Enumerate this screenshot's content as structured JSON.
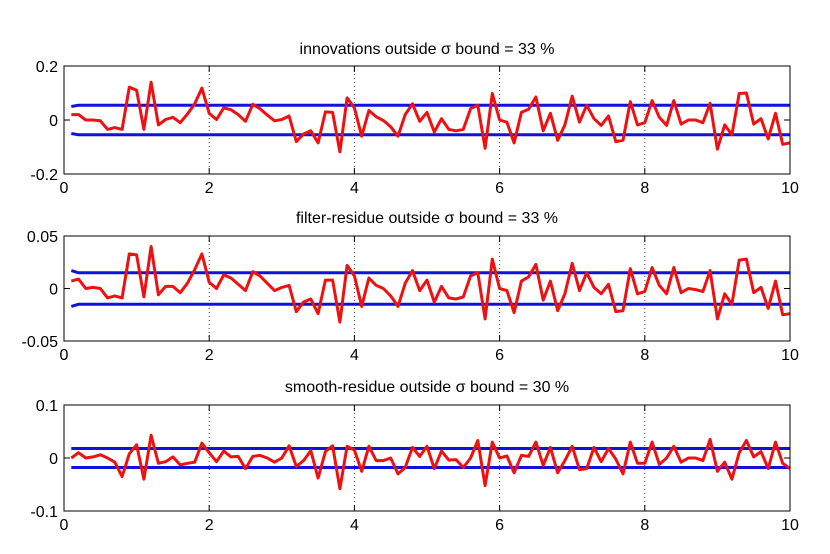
{
  "figure": {
    "background": "#ffffff",
    "series_colors": {
      "residual": "#ee1111",
      "bound": "#1111dd"
    }
  },
  "chart_data": [
    {
      "type": "line",
      "title": "innovations outside σ bound = 33 %",
      "xlim": [
        0,
        10
      ],
      "ylim": [
        -0.2,
        0.2
      ],
      "xticks": [
        "0",
        "2",
        "4",
        "6",
        "8",
        "10"
      ],
      "yticks": [
        "0.2",
        "0",
        "-0.2"
      ],
      "ytick_values": [
        0.2,
        0,
        -0.2
      ],
      "xgrid": "dotted vertical lines at each x tick",
      "x_start": 0.1,
      "x_step": 0.1,
      "series": [
        {
          "role": "residual",
          "values": [
            0.02,
            0.02,
            0.0,
            0.0,
            -0.003,
            -0.035,
            -0.028,
            -0.035,
            0.122,
            0.11,
            -0.035,
            0.14,
            -0.018,
            0.002,
            0.01,
            -0.01,
            0.022,
            0.06,
            0.118,
            0.025,
            0.002,
            0.045,
            0.038,
            0.02,
            -0.005,
            0.058,
            0.042,
            0.018,
            -0.003,
            0.002,
            0.015,
            -0.08,
            -0.052,
            -0.04,
            -0.085,
            0.03,
            0.028,
            -0.118,
            0.082,
            0.045,
            -0.06,
            0.035,
            0.012,
            -0.002,
            -0.025,
            -0.06,
            0.02,
            0.06,
            -0.005,
            0.028,
            -0.045,
            0.005,
            -0.035,
            -0.04,
            -0.035,
            0.042,
            0.055,
            -0.105,
            0.098,
            0.0,
            -0.008,
            -0.085,
            0.028,
            0.04,
            0.085,
            -0.04,
            0.025,
            -0.075,
            -0.018,
            0.088,
            -0.008,
            0.055,
            0.005,
            -0.02,
            0.015,
            -0.08,
            -0.075,
            0.068,
            -0.018,
            -0.01,
            0.072,
            0.01,
            -0.02,
            0.072,
            -0.015,
            0.0,
            0.0,
            -0.01,
            0.062,
            -0.108,
            -0.018,
            -0.055,
            0.098,
            0.1,
            -0.015,
            0.005,
            -0.07,
            0.025,
            -0.09,
            -0.085
          ]
        },
        {
          "role": "bound_upper",
          "x": [
            0.1,
            0.2,
            10
          ],
          "values": [
            0.05,
            0.055,
            0.055
          ]
        },
        {
          "role": "bound_lower",
          "x": [
            0.1,
            0.2,
            10
          ],
          "values": [
            -0.05,
            -0.055,
            -0.055
          ]
        }
      ]
    },
    {
      "type": "line",
      "title": "filter-residue outside σ bound = 33 %",
      "xlim": [
        0,
        10
      ],
      "ylim": [
        -0.05,
        0.05
      ],
      "xticks": [
        "0",
        "2",
        "4",
        "6",
        "8",
        "10"
      ],
      "yticks": [
        "0.05",
        "0",
        "-0.05"
      ],
      "ytick_values": [
        0.05,
        0,
        -0.05
      ],
      "xgrid": "dotted vertical lines at each x tick",
      "x_start": 0.1,
      "x_step": 0.1,
      "series": [
        {
          "role": "residual",
          "values": [
            0.007,
            0.009,
            0.0,
            0.001,
            0.0,
            -0.009,
            -0.007,
            -0.009,
            0.033,
            0.032,
            -0.008,
            0.04,
            -0.006,
            0.002,
            0.002,
            -0.004,
            0.005,
            0.018,
            0.033,
            0.006,
            0.0,
            0.013,
            0.01,
            0.004,
            -0.002,
            0.016,
            0.012,
            0.005,
            -0.002,
            0.001,
            0.003,
            -0.022,
            -0.013,
            -0.01,
            -0.024,
            0.008,
            0.008,
            -0.032,
            0.022,
            0.012,
            -0.017,
            0.01,
            0.003,
            0.0,
            -0.007,
            -0.017,
            0.005,
            0.017,
            -0.002,
            0.008,
            -0.013,
            0.002,
            -0.009,
            -0.01,
            -0.008,
            0.012,
            0.015,
            -0.029,
            0.028,
            0.0,
            -0.002,
            -0.023,
            0.007,
            0.011,
            0.023,
            -0.011,
            0.007,
            -0.021,
            -0.005,
            0.024,
            -0.002,
            0.015,
            0.001,
            -0.005,
            0.004,
            -0.022,
            -0.021,
            0.019,
            -0.005,
            -0.003,
            0.02,
            0.003,
            -0.005,
            0.02,
            -0.004,
            0.0,
            -0.001,
            -0.003,
            0.017,
            -0.029,
            -0.005,
            -0.015,
            0.027,
            0.028,
            -0.004,
            0.001,
            -0.019,
            0.007,
            -0.025,
            -0.024
          ]
        },
        {
          "role": "bound_upper",
          "x": [
            0.1,
            0.2,
            10
          ],
          "values": [
            0.017,
            0.015,
            0.015
          ]
        },
        {
          "role": "bound_lower",
          "x": [
            0.1,
            0.2,
            10
          ],
          "values": [
            -0.017,
            -0.015,
            -0.015
          ]
        }
      ]
    },
    {
      "type": "line",
      "title": "smooth-residue outside σ bound = 30 %",
      "xlim": [
        0,
        10
      ],
      "ylim": [
        -0.1,
        0.1
      ],
      "xticks": [
        "0",
        "2",
        "4",
        "6",
        "8",
        "10"
      ],
      "yticks": [
        "0.1",
        "0",
        "-0.1"
      ],
      "ytick_values": [
        0.1,
        0,
        -0.1
      ],
      "xgrid": "dotted vertical lines at each x tick",
      "x_start": 0.1,
      "x_step": 0.1,
      "series": [
        {
          "role": "residual",
          "values": [
            0.0,
            0.01,
            0.0,
            0.002,
            0.006,
            0.0,
            -0.008,
            -0.035,
            0.008,
            0.025,
            -0.04,
            0.043,
            -0.01,
            -0.007,
            0.002,
            -0.013,
            -0.01,
            -0.008,
            0.028,
            0.01,
            -0.007,
            0.013,
            0.002,
            0.003,
            -0.02,
            0.003,
            0.005,
            0.0,
            -0.008,
            0.0,
            0.023,
            -0.016,
            -0.005,
            0.014,
            -0.038,
            0.012,
            0.023,
            -0.058,
            0.022,
            0.015,
            -0.025,
            0.022,
            -0.005,
            -0.005,
            0.0,
            -0.03,
            -0.018,
            0.02,
            0.003,
            0.022,
            -0.02,
            0.013,
            -0.004,
            -0.003,
            -0.018,
            0.0,
            0.033,
            -0.052,
            0.03,
            0.0,
            0.004,
            -0.028,
            0.005,
            0.003,
            0.03,
            -0.014,
            0.02,
            -0.028,
            -0.005,
            0.022,
            -0.022,
            -0.02,
            0.02,
            -0.007,
            0.018,
            -0.002,
            -0.03,
            0.03,
            -0.01,
            -0.01,
            0.03,
            -0.012,
            0.0,
            0.022,
            -0.008,
            0.0,
            0.0,
            -0.005,
            0.035,
            -0.025,
            -0.008,
            -0.04,
            0.01,
            0.033,
            0.002,
            0.012,
            -0.02,
            0.03,
            -0.01,
            -0.02
          ]
        },
        {
          "role": "bound_upper",
          "x": [
            0.1,
            10
          ],
          "values": [
            0.018,
            0.018
          ]
        },
        {
          "role": "bound_lower",
          "x": [
            0.1,
            10
          ],
          "values": [
            -0.018,
            -0.018
          ]
        }
      ]
    }
  ]
}
